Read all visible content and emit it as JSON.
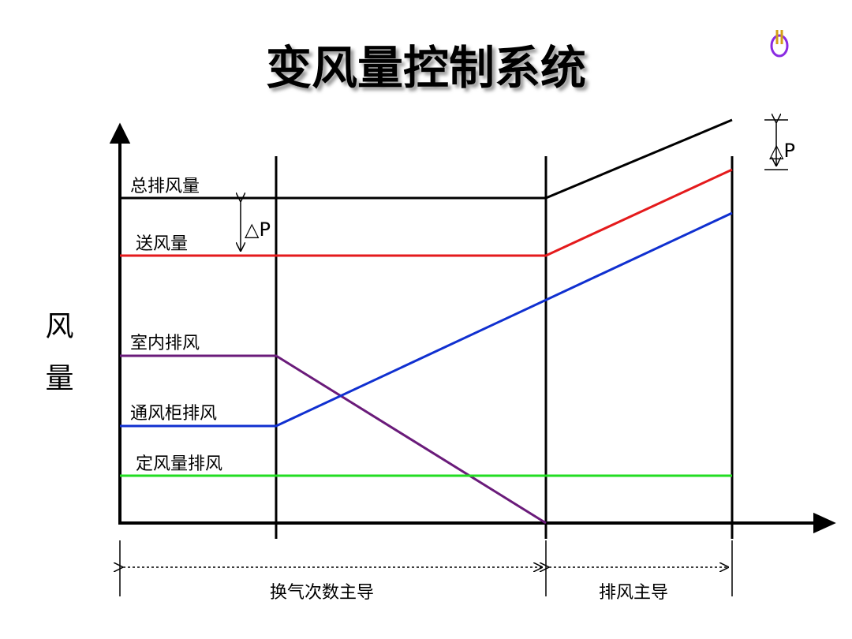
{
  "header": {
    "title": "变风量控制系统"
  },
  "axis": {
    "y_label": "风量"
  },
  "lines": [
    {
      "label": "总排风量"
    },
    {
      "label": "送风量"
    },
    {
      "label": "室内排风"
    },
    {
      "label": "通风柜排风"
    },
    {
      "label": "定风量排风"
    }
  ],
  "pressure_difference": {
    "left": "△P",
    "right": "△P"
  },
  "regions": [
    {
      "label": "换气次数主导"
    },
    {
      "label": "排风主导"
    }
  ]
}
